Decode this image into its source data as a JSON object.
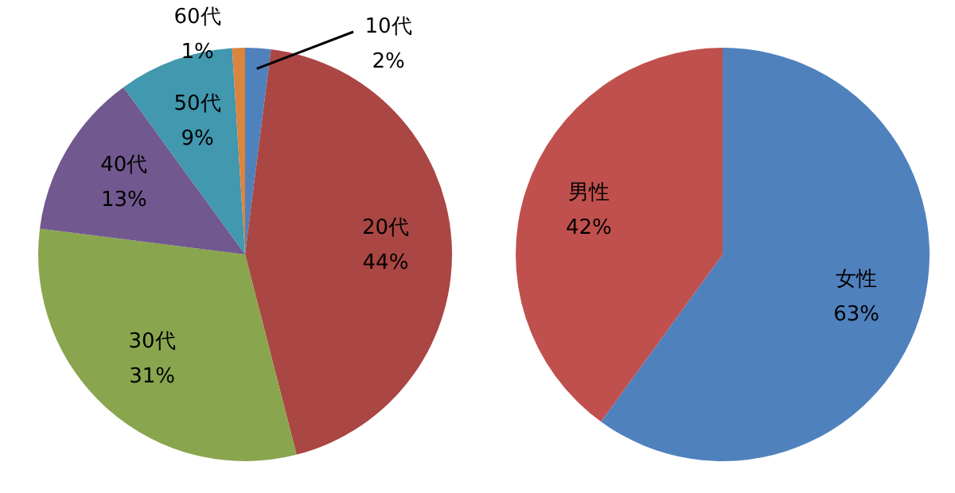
{
  "chart_data": [
    {
      "type": "pie",
      "categories": [
        "10代",
        "20代",
        "30代",
        "40代",
        "50代",
        "60代"
      ],
      "values": [
        2,
        44,
        31,
        13,
        9,
        1
      ],
      "value_labels": [
        "2%",
        "44%",
        "31%",
        "13%",
        "9%",
        "1%"
      ],
      "colors": [
        "#4f81bd",
        "#aa4643",
        "#89a54e",
        "#71588f",
        "#4198af",
        "#db843d"
      ],
      "legend": false
    },
    {
      "type": "pie",
      "categories": [
        "女性",
        "男性"
      ],
      "values": [
        63,
        42
      ],
      "value_labels": [
        "63%",
        "42%"
      ],
      "colors": [
        "#4f81bd",
        "#c0504d"
      ],
      "legend": false
    }
  ]
}
